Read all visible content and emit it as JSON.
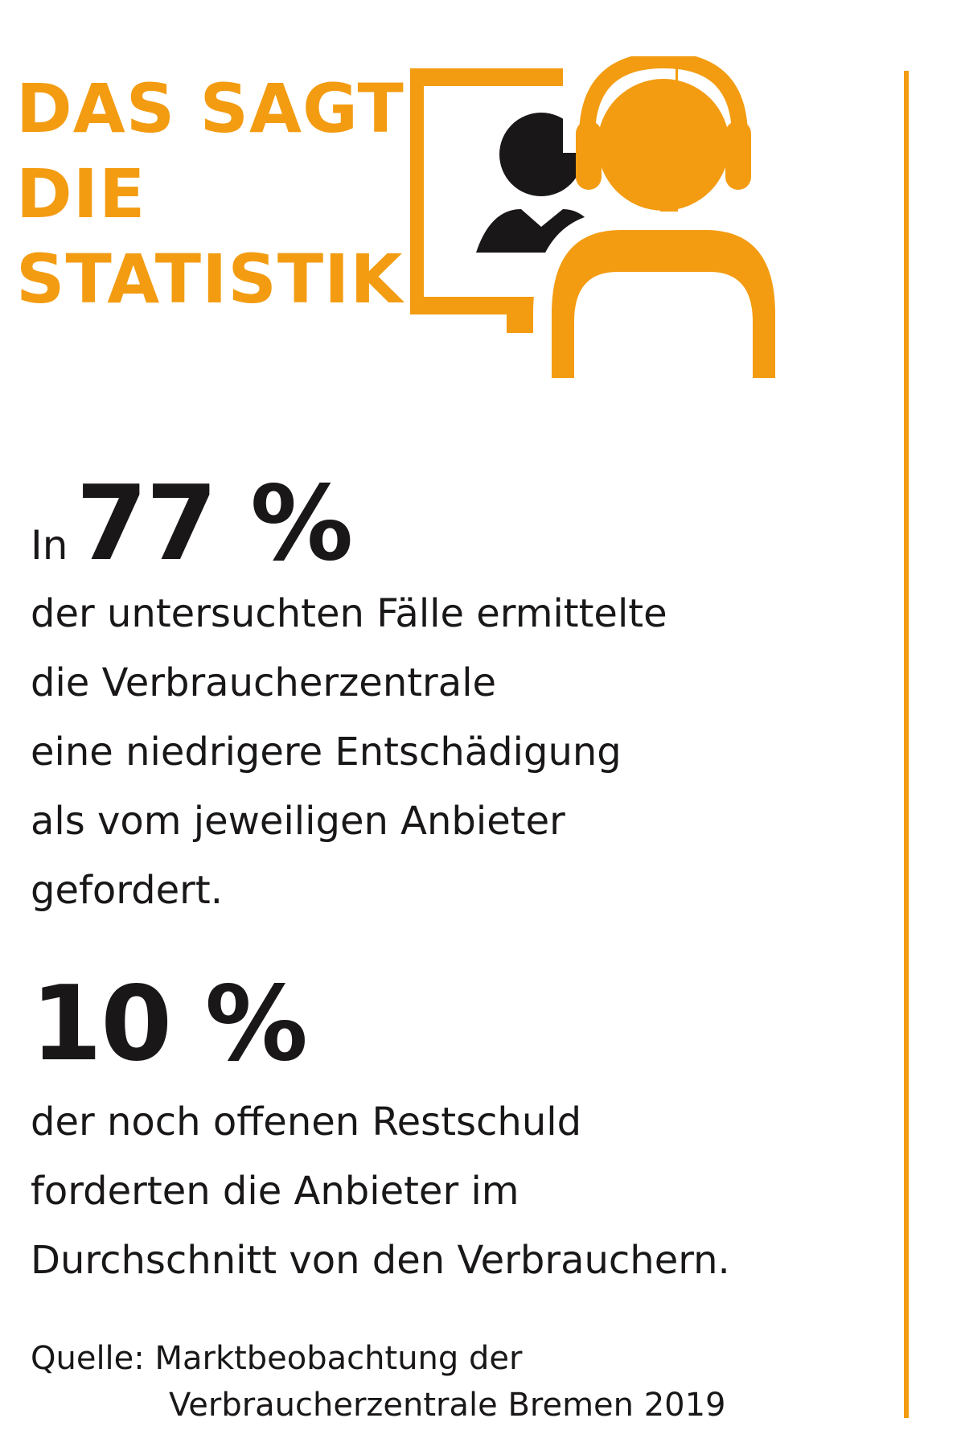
{
  "header": {
    "title_lines": [
      "DAS SAGT",
      "DIE",
      "STATISTIK"
    ]
  },
  "illustration": {
    "icons": [
      "monitor-with-person-icon",
      "person-with-headset-icon"
    ]
  },
  "stat_1": {
    "prefix": "In",
    "value": "77 %",
    "description_lines": [
      "der untersuchten Fälle ermittelte",
      "die Verbraucherzentrale",
      "eine niedrigere Entschädigung",
      "als vom jeweiligen Anbieter",
      "gefordert."
    ]
  },
  "stat_2": {
    "value": "10 %",
    "description_lines": [
      "der noch offenen Restschuld",
      "forderten die Anbieter im",
      "Durchschnitt von den Verbrauchern."
    ]
  },
  "source": {
    "lines": [
      "Quelle: Marktbeobachtung der",
      "Verbraucherzentrale Bremen 2019"
    ]
  },
  "colors": {
    "accent": "#f39c12",
    "text": "#1a1718"
  }
}
